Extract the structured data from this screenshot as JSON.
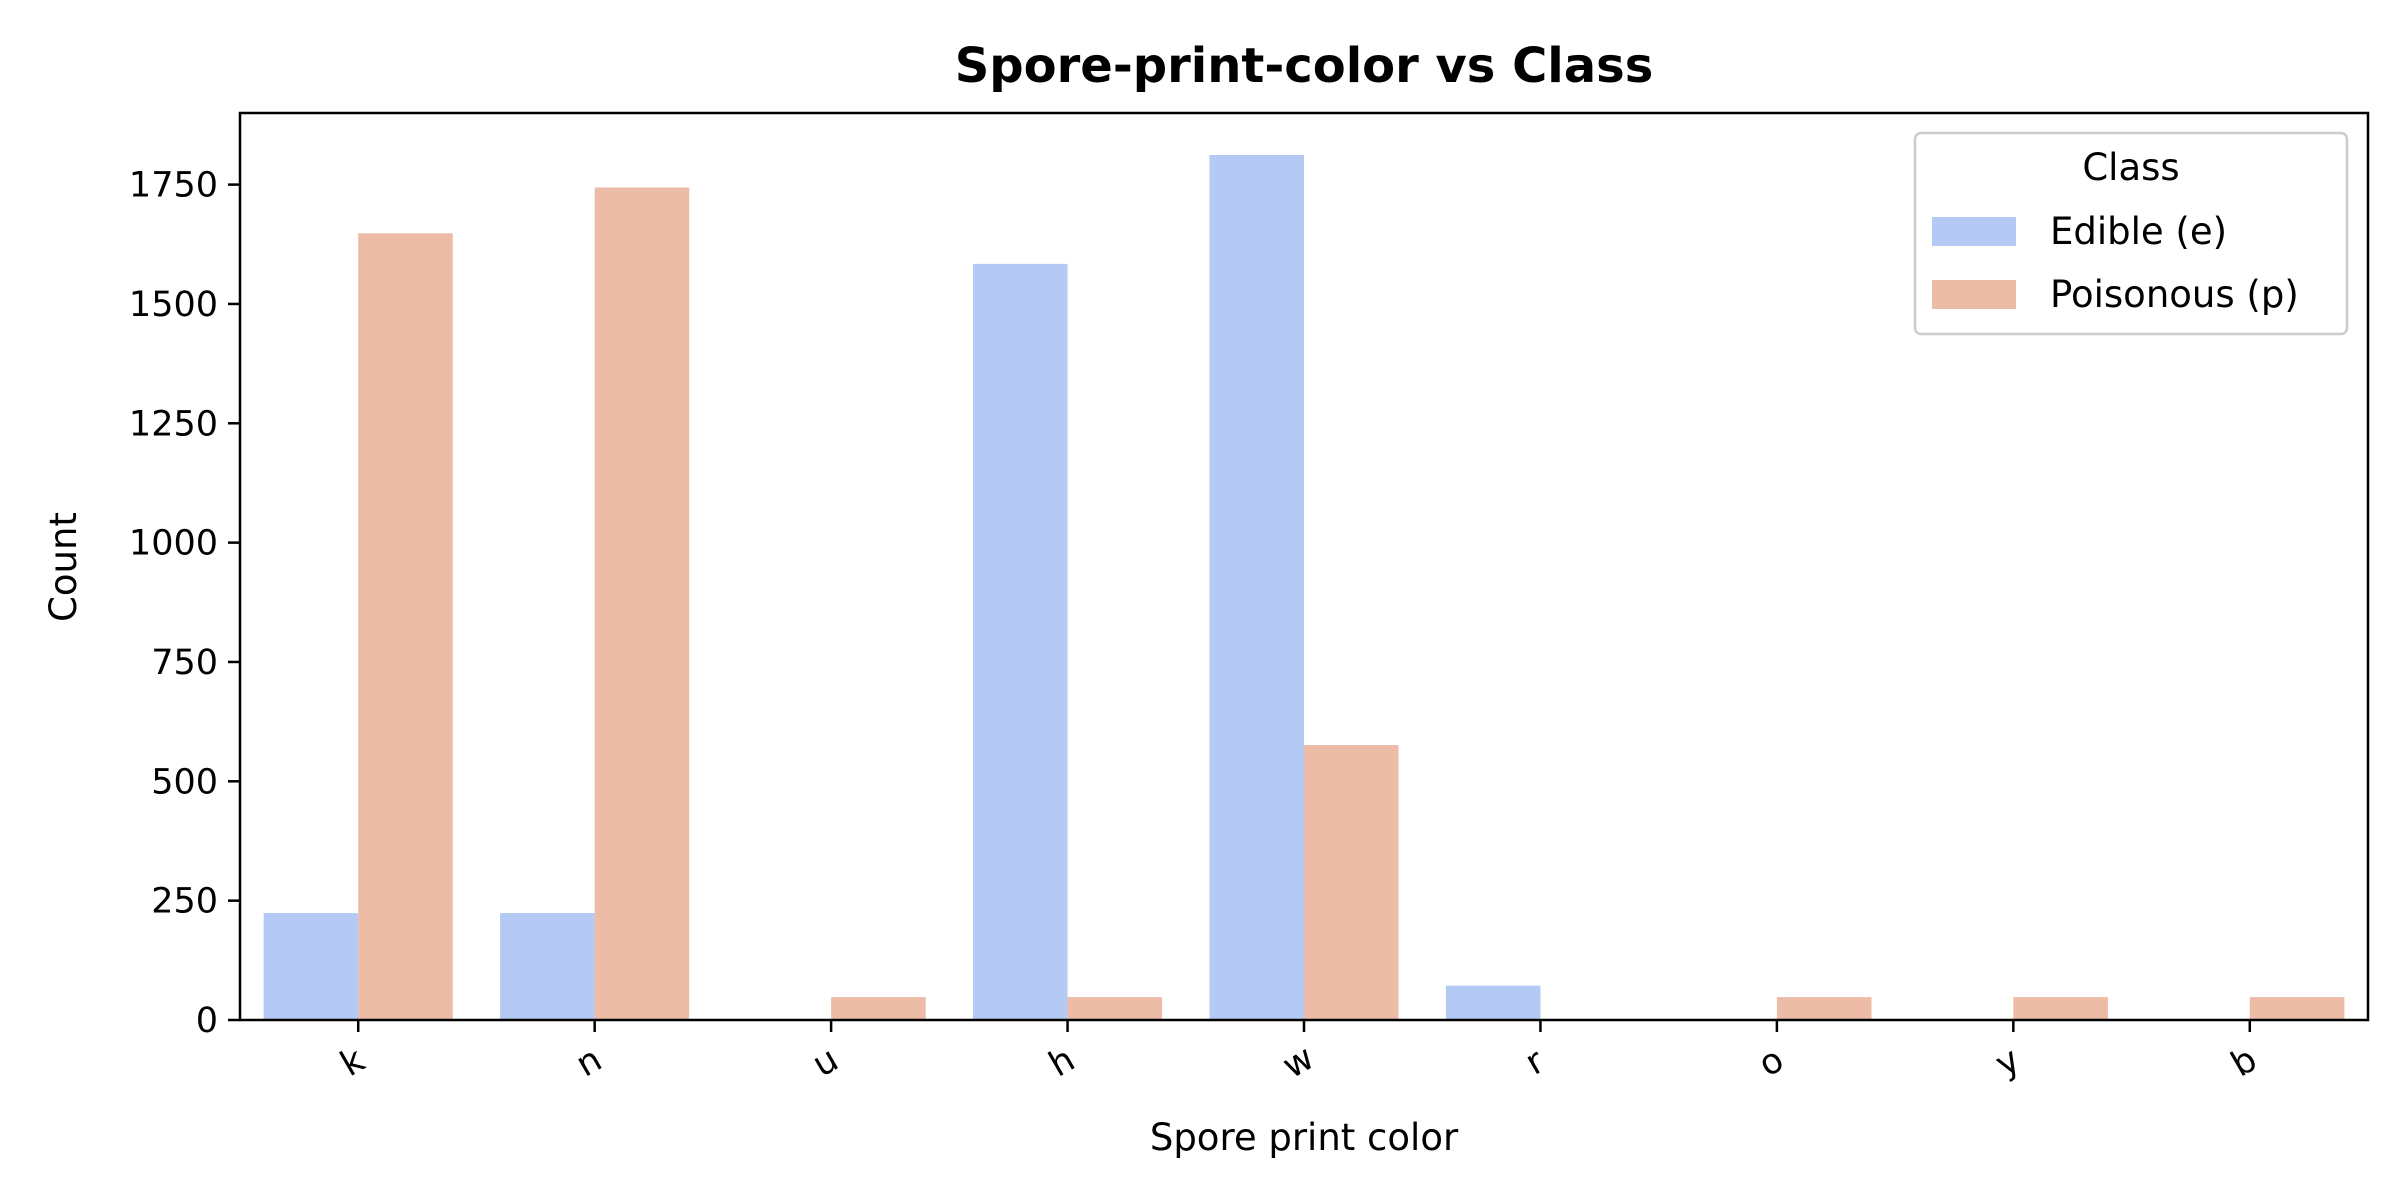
{
  "chart_data": {
    "type": "bar",
    "title": "Spore-print-color vs Class",
    "xlabel": "Spore print color",
    "ylabel": "Count",
    "categories": [
      "k",
      "n",
      "u",
      "h",
      "w",
      "r",
      "o",
      "y",
      "b"
    ],
    "series": [
      {
        "name": "Edible (e)",
        "color": "#b4c9f3",
        "values": [
          224,
          224,
          0,
          1584,
          1812,
          72,
          0,
          0,
          0
        ]
      },
      {
        "name": "Poisonous (p)",
        "color": "#ecbca6",
        "values": [
          1648,
          1744,
          48,
          48,
          576,
          0,
          48,
          48,
          48
        ]
      }
    ],
    "ylim": [
      0,
      1900
    ],
    "yticks": [
      0,
      250,
      500,
      750,
      1000,
      1250,
      1500,
      1750
    ],
    "legend": {
      "title": "Class",
      "position": "top-right"
    },
    "grid": false
  }
}
